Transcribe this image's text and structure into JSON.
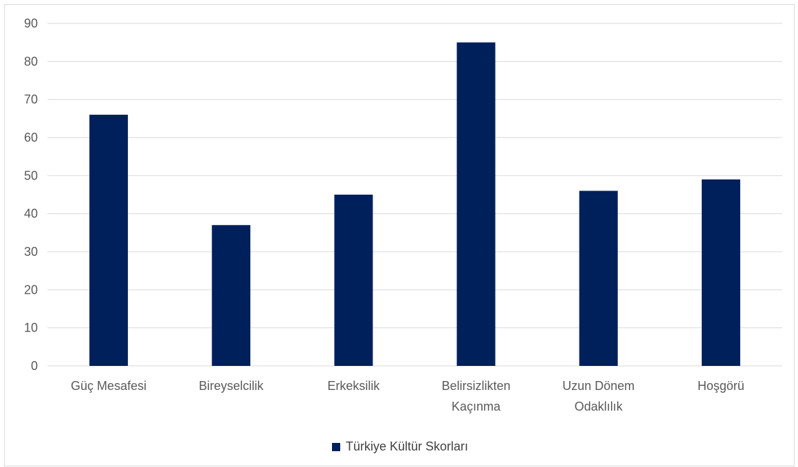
{
  "colors": {
    "bar": "#00205b",
    "grid": "#d9d9d9",
    "text": "#595959"
  },
  "chart_data": {
    "type": "bar",
    "categories": [
      [
        "Güç Mesafesi"
      ],
      [
        "Bireyselcilik"
      ],
      [
        "Erkeksilik"
      ],
      [
        "Belirsizlikten",
        "Kaçınma"
      ],
      [
        "Uzun Dönem",
        "Odaklılık"
      ],
      [
        "Hoşgörü"
      ]
    ],
    "series": [
      {
        "name": "Türkiye Kültür Skorları",
        "values": [
          66,
          37,
          45,
          85,
          46,
          49
        ]
      }
    ],
    "title": "",
    "xlabel": "",
    "ylabel": "",
    "ylim": [
      0,
      90
    ],
    "yticks": [
      "0",
      "10",
      "20",
      "30",
      "40",
      "50",
      "60",
      "70",
      "80",
      "90"
    ],
    "grid": true,
    "legend_position": "bottom"
  }
}
